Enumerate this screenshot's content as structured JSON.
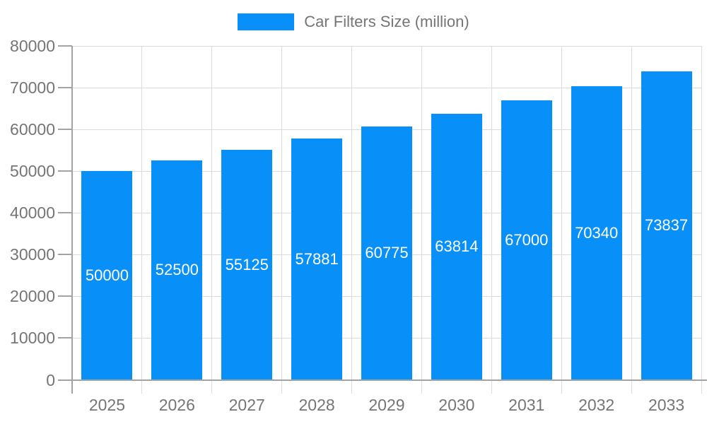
{
  "chart_data": {
    "type": "bar",
    "title": "Car Filters Size (million)",
    "legend": [
      "Car Filters Size (million)"
    ],
    "legend_position": "top-center",
    "categories": [
      "2025",
      "2026",
      "2027",
      "2028",
      "2029",
      "2030",
      "2031",
      "2032",
      "2033"
    ],
    "values": [
      50000,
      52500,
      55125,
      57881,
      60775,
      63814,
      67000,
      70340,
      73837
    ],
    "value_labels": [
      "50000",
      "52500",
      "55125",
      "57881",
      "60775",
      "63814",
      "67000",
      "70340",
      "73837"
    ],
    "value_label_position": "inside-center",
    "xlabel": "",
    "ylabel": "",
    "ylim": [
      0,
      80000
    ],
    "ytick_step": 10000,
    "ytick_labels": [
      "0",
      "10000",
      "20000",
      "30000",
      "40000",
      "50000",
      "60000",
      "70000",
      "80000"
    ],
    "grid": "on",
    "colors": {
      "bar": "#0990F8",
      "grid": "#DBDBDB",
      "axis": "#A3A3A3",
      "tick_label": "#757575",
      "legend_label": "#757575",
      "value_label": "#FFFFFF",
      "background": "#FFFFFF"
    }
  }
}
